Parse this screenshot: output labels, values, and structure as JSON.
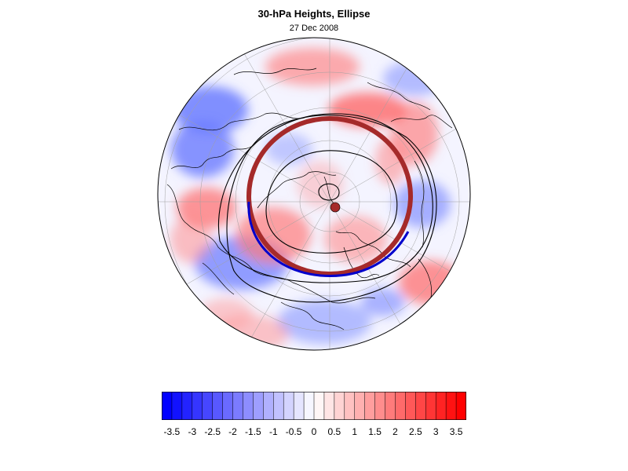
{
  "title": "30-hPa Heights, Ellipse",
  "subtitle": "27 Dec 2008",
  "colors": {
    "negative": "#0000ff",
    "positive": "#ff0000",
    "ellipse_outer": "#a52a2a",
    "ellipse_inner": "#0000cc",
    "contour": "#000000"
  },
  "colorbar": {
    "min": -3.75,
    "max": 3.75,
    "step": 0.25,
    "tick_labels": [
      "-3.5",
      "-3",
      "-2.5",
      "-2",
      "-1.5",
      "-1",
      "-0.5",
      "0",
      "0.5",
      "1",
      "1.5",
      "2",
      "2.5",
      "3",
      "3.5"
    ]
  },
  "map": {
    "projection": "polar-stereographic",
    "hemisphere": "north",
    "field": "height-anomaly",
    "overlay": "ellipse"
  }
}
